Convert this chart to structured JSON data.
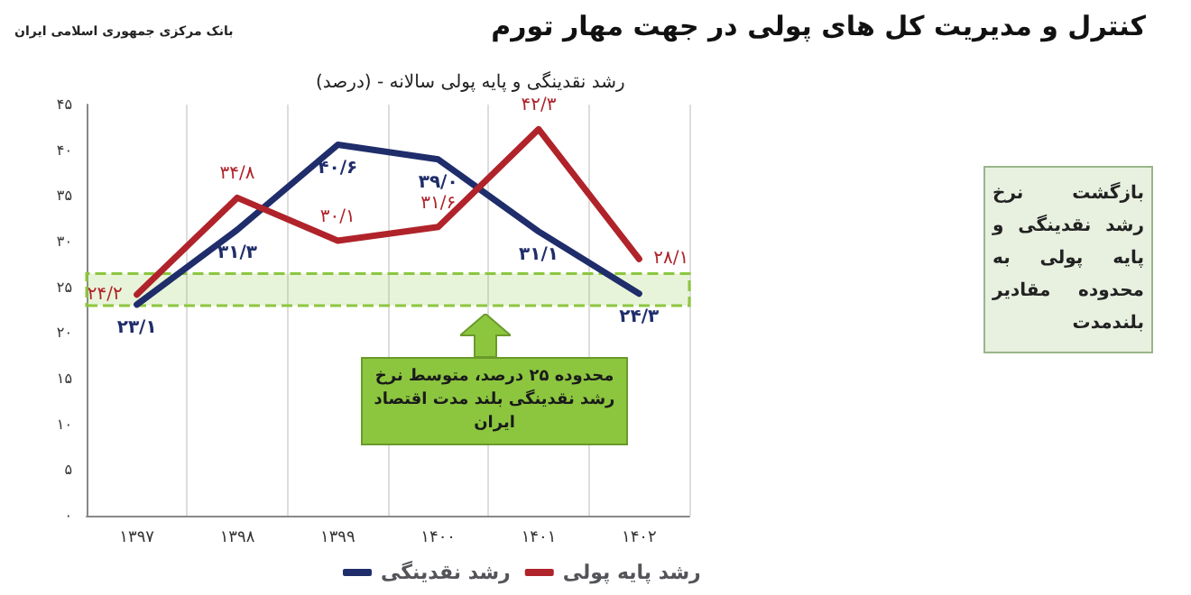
{
  "chart_data": {
    "type": "line",
    "title": "کنترل و مدیریت کل های پولی در جهت مهار تورم",
    "subtitle": "رشد نقدینگی و پایه پولی سالانه - (درصد)",
    "categories": [
      "۱۳۹۷",
      "۱۳۹۸",
      "۱۳۹۹",
      "۱۴۰۰",
      "۱۴۰۱",
      "۱۴۰۲"
    ],
    "series": [
      {
        "name": "رشد نقدینگی",
        "color": "#1f2d6b",
        "values": [
          23.1,
          31.3,
          40.6,
          39.0,
          31.1,
          24.3
        ],
        "value_labels": [
          "۲۳/۱",
          "۳۱/۳",
          "۴۰/۶",
          "۳۹/۰",
          "۳۱/۱",
          "۲۴/۳"
        ]
      },
      {
        "name": "رشد پایه پولی",
        "color": "#b0232a",
        "values": [
          24.2,
          34.8,
          30.1,
          31.6,
          42.3,
          28.1
        ],
        "value_labels": [
          "۲۴/۲",
          "۳۴/۸",
          "۳۰/۱",
          "۳۱/۶",
          "۴۲/۳",
          "۲۸/۱"
        ]
      }
    ],
    "ylim": [
      0,
      45
    ],
    "yticks": [
      {
        "value": 0,
        "label": "۰"
      },
      {
        "value": 5,
        "label": "۵"
      },
      {
        "value": 10,
        "label": "۱۰"
      },
      {
        "value": 15,
        "label": "۱۵"
      },
      {
        "value": 20,
        "label": "۲۰"
      },
      {
        "value": 25,
        "label": "۲۵"
      },
      {
        "value": 30,
        "label": "۳۰"
      },
      {
        "value": 35,
        "label": "۳۵"
      },
      {
        "value": 40,
        "label": "۴۰"
      },
      {
        "value": 45,
        "label": "۴۵"
      }
    ],
    "bands": [
      {
        "axis": "y",
        "from": 23,
        "to": 26.5,
        "color": "#8cc63f"
      }
    ],
    "annotations": [
      "محدوده ۲۵ درصد، متوسط نرخ رشد نقدینگی بلند مدت اقتصاد ایران",
      "بازگشت نرخ رشد نقدینگی و پایه پولی به محدوده مقادیر بلندمدت",
      "بانک مرکزی جمهوری اسلامی ایران"
    ],
    "grid": "x",
    "legend": "bottom",
    "marker": "none",
    "line_style": "solid"
  }
}
